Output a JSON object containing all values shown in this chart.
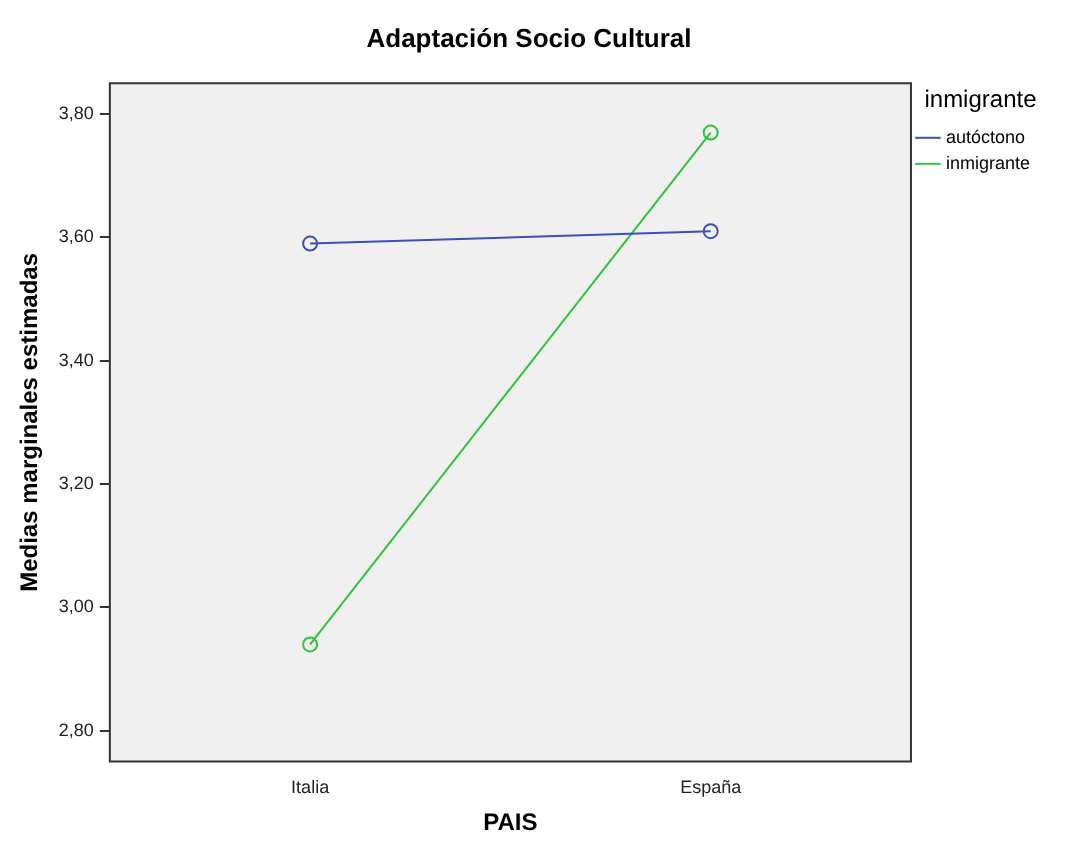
{
  "chart_data": {
    "type": "line",
    "title": "Adaptación Socio Cultural",
    "xlabel": "PAIS",
    "ylabel": "Medias marginales estimadas",
    "legend_title": "inmigrante",
    "categories": [
      "Italia",
      "España"
    ],
    "series": [
      {
        "name": "autóctono",
        "color": "#3d4fb8",
        "values": [
          3.59,
          3.61
        ]
      },
      {
        "name": "inmigrante",
        "color": "#2fc43a",
        "values": [
          2.94,
          3.77
        ]
      }
    ],
    "ylim": [
      2.75,
      3.85
    ],
    "yticks": [
      {
        "value": 2.8,
        "label": "2,80"
      },
      {
        "value": 3.0,
        "label": "3,00"
      },
      {
        "value": 3.2,
        "label": "3,20"
      },
      {
        "value": 3.4,
        "label": "3,40"
      },
      {
        "value": 3.6,
        "label": "3,60"
      },
      {
        "value": 3.8,
        "label": "3,80"
      }
    ],
    "grid": false,
    "legend": "right",
    "marker": "circle",
    "line_style": "solid"
  }
}
